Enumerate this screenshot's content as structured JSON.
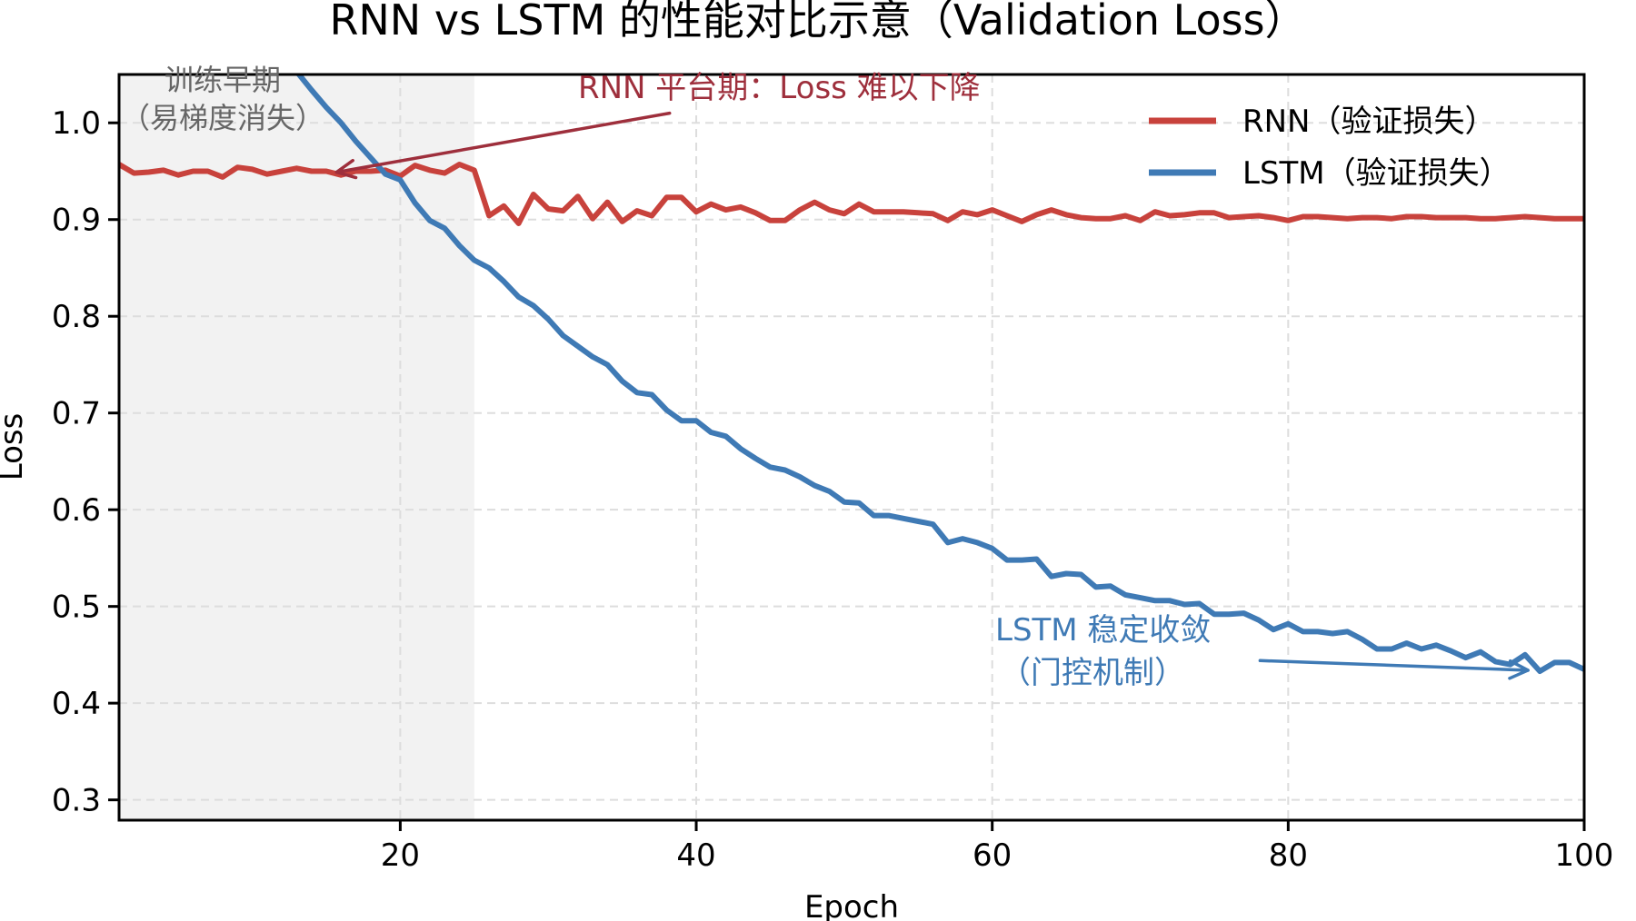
{
  "chart_data": {
    "type": "line",
    "title": "RNN vs LSTM 的性能对比示意（Validation Loss）",
    "xlabel": "Epoch",
    "ylabel": "Loss",
    "xlim": [
      1,
      100
    ],
    "ylim": [
      0.279,
      1.05
    ],
    "xticks": [
      20,
      40,
      60,
      80,
      100
    ],
    "xtick_labels": [
      "20",
      "40",
      "60",
      "80",
      "100"
    ],
    "yticks": [
      0.3,
      0.4,
      0.5,
      0.6,
      0.7,
      0.8,
      0.9,
      1.0
    ],
    "ytick_labels": [
      "0.3",
      "0.4",
      "0.5",
      "0.6",
      "0.7",
      "0.8",
      "0.9",
      "1.0"
    ],
    "grid": true,
    "legend_position": "top-right",
    "shaded_region": {
      "x_start": 1,
      "x_end": 25,
      "color": "#f2f2f2"
    },
    "series": [
      {
        "name": "RNN（验证损失）",
        "color": "#c8423c",
        "x_start": 1,
        "values": [
          0.957,
          0.948,
          0.949,
          0.951,
          0.946,
          0.95,
          0.95,
          0.944,
          0.954,
          0.952,
          0.947,
          0.95,
          0.953,
          0.95,
          0.95,
          0.946,
          0.95,
          0.95,
          0.951,
          0.945,
          0.956,
          0.951,
          0.948,
          0.957,
          0.951,
          0.904,
          0.914,
          0.896,
          0.926,
          0.911,
          0.909,
          0.924,
          0.901,
          0.918,
          0.898,
          0.909,
          0.904,
          0.923,
          0.923,
          0.908,
          0.916,
          0.91,
          0.913,
          0.907,
          0.899,
          0.899,
          0.91,
          0.918,
          0.91,
          0.906,
          0.916,
          0.908,
          0.908,
          0.908,
          0.907,
          0.906,
          0.899,
          0.908,
          0.905,
          0.91,
          0.904,
          0.898,
          0.905,
          0.91,
          0.905,
          0.902,
          0.901,
          0.901,
          0.904,
          0.899,
          0.908,
          0.904,
          0.905,
          0.907,
          0.907,
          0.902,
          0.903,
          0.904,
          0.902,
          0.899,
          0.903,
          0.903,
          0.902,
          0.901,
          0.902,
          0.902,
          0.901,
          0.903,
          0.903,
          0.902,
          0.902,
          0.902,
          0.901,
          0.901,
          0.902,
          0.903,
          0.902,
          0.901,
          0.901,
          0.901
        ]
      },
      {
        "name": "LSTM（验证损失）",
        "color": "#3f7ab5",
        "x_start": 13,
        "values": [
          1.053,
          1.034,
          1.016,
          1.0,
          0.981,
          0.964,
          0.947,
          0.941,
          0.917,
          0.899,
          0.891,
          0.873,
          0.858,
          0.85,
          0.836,
          0.82,
          0.811,
          0.797,
          0.78,
          0.769,
          0.758,
          0.75,
          0.733,
          0.721,
          0.719,
          0.703,
          0.692,
          0.692,
          0.68,
          0.676,
          0.663,
          0.653,
          0.644,
          0.641,
          0.634,
          0.625,
          0.619,
          0.608,
          0.607,
          0.594,
          0.594,
          0.591,
          0.588,
          0.585,
          0.566,
          0.57,
          0.566,
          0.56,
          0.548,
          0.548,
          0.549,
          0.531,
          0.534,
          0.533,
          0.52,
          0.521,
          0.512,
          0.509,
          0.506,
          0.506,
          0.502,
          0.503,
          0.492,
          0.492,
          0.493,
          0.486,
          0.476,
          0.482,
          0.474,
          0.474,
          0.472,
          0.474,
          0.466,
          0.456,
          0.456,
          0.462,
          0.456,
          0.46,
          0.454,
          0.447,
          0.453,
          0.443,
          0.44,
          0.45,
          0.433,
          0.442,
          0.442,
          0.435
        ]
      }
    ],
    "annotations": [
      {
        "id": "early",
        "lines": [
          "训练早期",
          "（易梯度消失）"
        ],
        "color": "#666666",
        "x": 6.0,
        "y": 1.035
      },
      {
        "id": "rnn",
        "text": "RNN 平台期：Loss 难以下降",
        "color": "#9e2f3c",
        "xy": [
          15.7,
          0.949
        ],
        "xytext": [
          38.2,
          1.01
        ]
      },
      {
        "id": "lstm",
        "lines": [
          "LSTM 稳定收敛",
          "（门控机制）"
        ],
        "color": "#3f7ab5",
        "xy": [
          96.2,
          0.434
        ],
        "xytext": [
          78.1,
          0.444
        ]
      }
    ]
  }
}
